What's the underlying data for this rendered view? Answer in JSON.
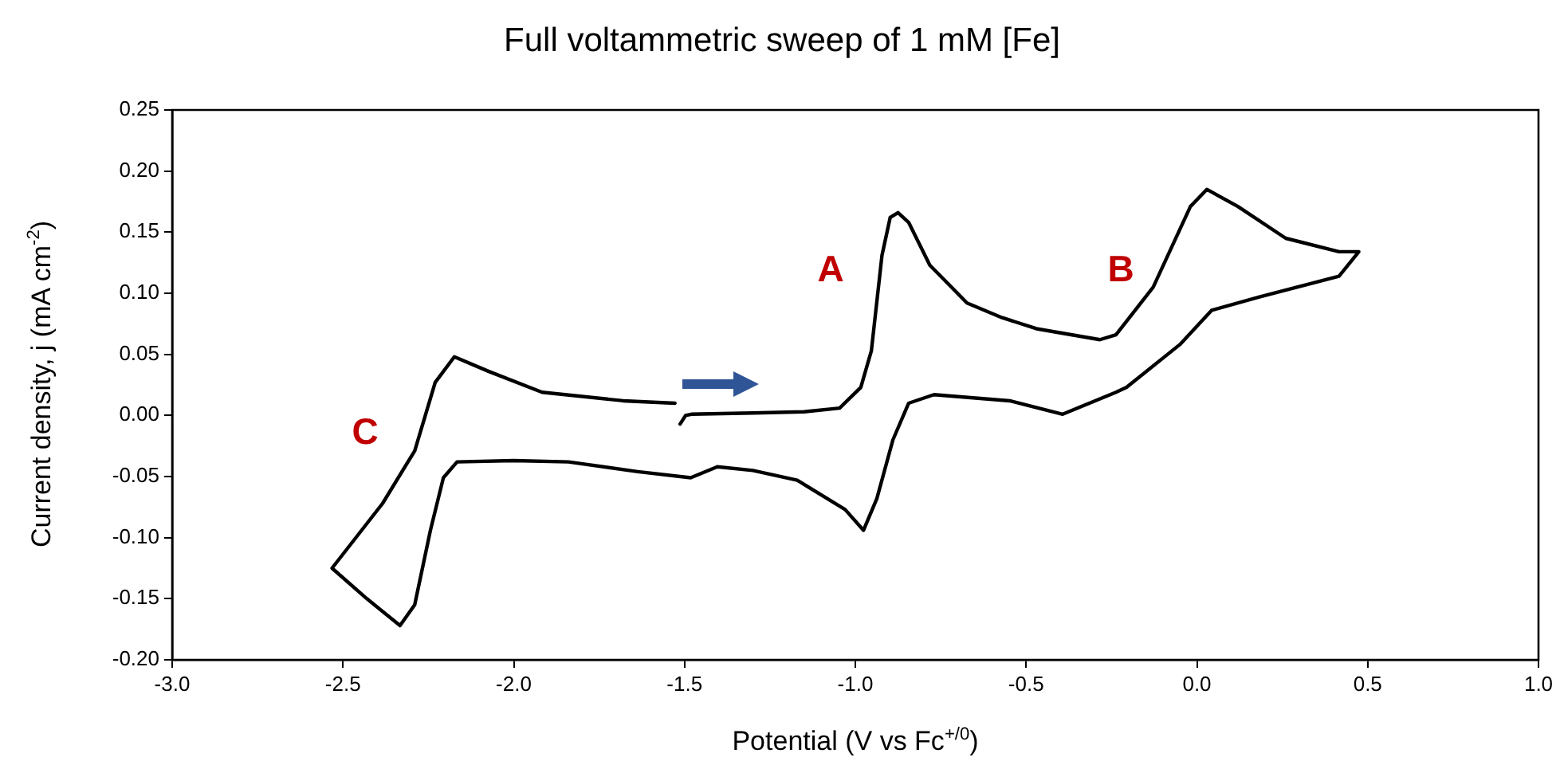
{
  "chart_data": {
    "type": "line",
    "title": "Full voltammetric sweep of 1 mM [Fe]",
    "xlabel": "Potential (V vs Fc$^{+/0}$)",
    "ylabel": "Current density, j (mA cm$^{-2}$)",
    "xlim": [
      -3.0,
      1.0
    ],
    "xticks": [
      {
        "value": -3,
        "label": "-3.0"
      },
      {
        "value": -2.5,
        "label": "-2.5"
      },
      {
        "value": -2,
        "label": "-2.0"
      },
      {
        "value": -1.5,
        "label": "-1.5"
      },
      {
        "value": -1,
        "label": "-1.0"
      },
      {
        "value": -0.5,
        "label": "-0.5"
      },
      {
        "value": 0,
        "label": "0.0"
      },
      {
        "value": 0.5,
        "label": "0.5"
      },
      {
        "value": 1,
        "label": "1.0"
      }
    ],
    "ylim": [
      -0.2,
      0.25
    ],
    "yticks": [
      {
        "value": -0.2,
        "label": "-0.20"
      },
      {
        "value": -0.15,
        "label": "-0.15"
      },
      {
        "value": -0.1,
        "label": "-0.10"
      },
      {
        "value": -0.05,
        "label": "-0.05"
      },
      {
        "value": 0,
        "label": "0.00"
      },
      {
        "value": 0.05,
        "label": "0.05"
      },
      {
        "value": 0.1,
        "label": "0.10"
      },
      {
        "value": 0.15,
        "label": "0.15"
      },
      {
        "value": 0.2,
        "label": "0.20"
      },
      {
        "value": 0.25,
        "label": "0.25"
      }
    ],
    "grid": false,
    "legend": false,
    "marker": "none",
    "line_style": "solid",
    "series": [
      {
        "color": "#000000",
        "x": [
          -1.513,
          -1.497,
          -1.48,
          -1.3,
          -1.15,
          -1.046,
          -0.984,
          -0.953,
          -0.922,
          -0.898,
          -0.875,
          -0.844,
          -0.782,
          -0.673,
          -0.57,
          -0.47,
          -0.284,
          -0.237,
          -0.128,
          -0.019,
          0.029,
          0.12,
          0.26,
          0.416,
          0.474,
          0.416,
          0.183,
          0.043,
          -0.05,
          -0.206,
          -0.237,
          -0.393,
          -0.548,
          -0.77,
          -0.844,
          -0.89,
          -0.937,
          -0.976,
          -1.03,
          -1.17,
          -1.3,
          -1.404,
          -1.482,
          -1.637,
          -1.84,
          -2.0,
          -2.166,
          -2.206,
          -2.244,
          -2.29,
          -2.333,
          -2.43,
          -2.532,
          -2.384,
          -2.29,
          -2.23,
          -2.174,
          -2.073,
          -1.917,
          -1.68,
          -1.528
        ],
        "values": [
          -0.007,
          0.0,
          0.001,
          0.002,
          0.003,
          0.006,
          0.023,
          0.053,
          0.131,
          0.162,
          0.166,
          0.158,
          0.123,
          0.092,
          0.08,
          0.071,
          0.062,
          0.066,
          0.105,
          0.171,
          0.185,
          0.171,
          0.145,
          0.134,
          0.134,
          0.114,
          0.097,
          0.086,
          0.058,
          0.023,
          0.019,
          0.001,
          0.012,
          0.017,
          0.01,
          -0.02,
          -0.068,
          -0.094,
          -0.077,
          -0.053,
          -0.045,
          -0.042,
          -0.051,
          -0.046,
          -0.038,
          -0.037,
          -0.038,
          -0.051,
          -0.094,
          -0.155,
          -0.172,
          -0.15,
          -0.125,
          -0.072,
          -0.029,
          0.027,
          0.048,
          0.036,
          0.019,
          0.012,
          0.01
        ]
      }
    ],
    "annotations": [
      "A",
      "B",
      "C"
    ]
  }
}
